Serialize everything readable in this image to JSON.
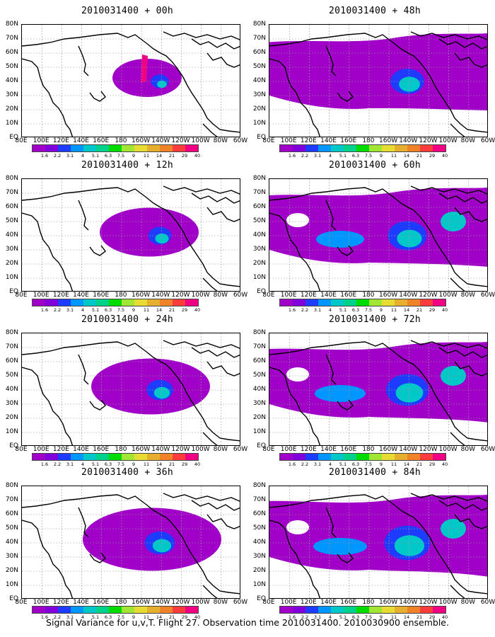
{
  "panels": [
    {
      "title": "2010031400 + 00h",
      "spread": 0.1
    },
    {
      "title": "2010031400 + 48h",
      "spread": 0.55
    },
    {
      "title": "2010031400 + 12h",
      "spread": 0.25
    },
    {
      "title": "2010031400 + 60h",
      "spread": 0.7
    },
    {
      "title": "2010031400 + 24h",
      "spread": 0.35
    },
    {
      "title": "2010031400 + 72h",
      "spread": 0.8
    },
    {
      "title": "2010031400 + 36h",
      "spread": 0.45
    },
    {
      "title": "2010031400 + 84h",
      "spread": 0.9
    }
  ],
  "lat_labels": [
    "80N",
    "70N",
    "60N",
    "50N",
    "40N",
    "30N",
    "20N",
    "10N",
    "EQ"
  ],
  "lon_labels": [
    "80E",
    "100E",
    "120E",
    "140E",
    "160E",
    "180",
    "160W",
    "140W",
    "120W",
    "100W",
    "80W",
    "60W"
  ],
  "colorbar": {
    "labels": [
      "1.6",
      "2.2",
      "3.1",
      "4",
      "5.1",
      "6.3",
      "7.5",
      "9",
      "11",
      "14",
      "21",
      "29",
      "40"
    ],
    "colors": [
      "#a000c8",
      "#8200dc",
      "#1e3cff",
      "#0096ff",
      "#00c8c8",
      "#00d28c",
      "#00dc00",
      "#a0e632",
      "#e6dc32",
      "#e6af2d",
      "#f08228",
      "#fa3c3c",
      "#f00082"
    ]
  },
  "caption": "Signal Variance for u,v,T. Flight 27. Observation time 2010031400. 2010030900 ensemble.",
  "chart_data": {
    "type": "heatmap",
    "title": "Signal Variance for u,v,T. Flight 27. Observation time 2010031400. 2010030900 ensemble.",
    "panels": [
      "2010031400 + 00h",
      "2010031400 + 48h",
      "2010031400 + 12h",
      "2010031400 + 60h",
      "2010031400 + 24h",
      "2010031400 + 72h",
      "2010031400 + 36h",
      "2010031400 + 84h"
    ],
    "x_ticks": [
      "80E",
      "100E",
      "120E",
      "140E",
      "160E",
      "180",
      "160W",
      "140W",
      "120W",
      "100W",
      "80W",
      "60W"
    ],
    "y_ticks": [
      "EQ",
      "10N",
      "20N",
      "30N",
      "40N",
      "50N",
      "60N",
      "70N",
      "80N"
    ],
    "colorbar_levels": [
      1.6,
      2.2,
      3.1,
      4,
      5.1,
      6.3,
      7.5,
      9,
      11,
      14,
      21,
      29,
      40
    ],
    "grid": true
  }
}
